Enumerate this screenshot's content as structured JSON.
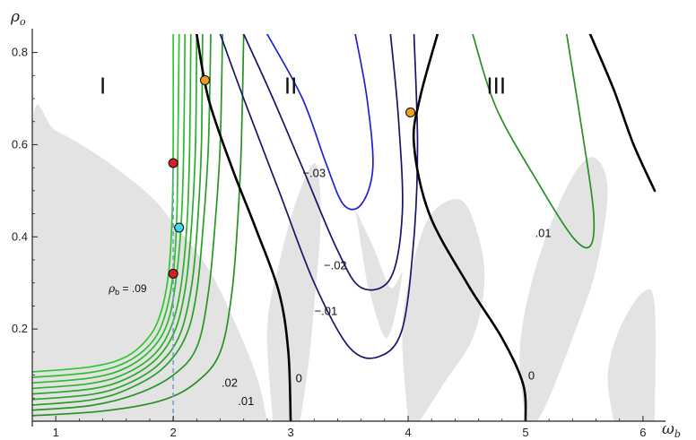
{
  "chart_data": {
    "type": "line",
    "title": "",
    "xlabel": "ω",
    "xlabel_sub": "b",
    "ylabel": "ρ",
    "ylabel_sub": "o",
    "xlim": [
      0.8,
      6.1
    ],
    "ylim": [
      0.0,
      0.84
    ],
    "xticks": [
      "1",
      "2",
      "3",
      "4",
      "5",
      "6"
    ],
    "yticks": [
      "0.2",
      "0.4",
      "0.6",
      "0.8"
    ],
    "grid": false,
    "region_labels": [
      {
        "text": "I",
        "x": 1.4,
        "y": 0.73
      },
      {
        "text": "II",
        "x": 3.0,
        "y": 0.73
      },
      {
        "text": "III",
        "x": 4.75,
        "y": 0.73
      }
    ],
    "shaded_color": "#e3e3e3",
    "colors": {
      "green_light": "#2ec82e",
      "green_dark": "#268f26",
      "blue": "#2020d0",
      "navy": "#15156b",
      "black": "#000000",
      "red_point": "#d42020",
      "cyan_point": "#40d8f0",
      "orange_point": "#f0a020",
      "dashed": "#7a9cc8"
    },
    "contour_labels": [
      {
        "text": ".02",
        "x": 2.48,
        "y": 0.075
      },
      {
        "text": ".01",
        "x": 2.62,
        "y": 0.035
      },
      {
        "text": "0",
        "x": 3.07,
        "y": 0.085
      },
      {
        "text": "0",
        "x": 5.05,
        "y": 0.09
      },
      {
        "text": "−.03",
        "x": 3.2,
        "y": 0.53
      },
      {
        "text": "−.02",
        "x": 3.38,
        "y": 0.33
      },
      {
        "text": "−.01",
        "x": 3.3,
        "y": 0.23
      },
      {
        "text": ".01",
        "x": 5.15,
        "y": 0.4
      }
    ],
    "annotation": {
      "symbol": "ρ",
      "sub": "b",
      "text": " = .09",
      "x": 1.45,
      "y": 0.28
    },
    "points": [
      {
        "type": "red",
        "x": 2.0,
        "y": 0.56
      },
      {
        "type": "red",
        "x": 2.0,
        "y": 0.32
      },
      {
        "type": "cyan",
        "x": 2.05,
        "y": 0.42
      },
      {
        "type": "orange",
        "x": 2.27,
        "y": 0.74
      },
      {
        "type": "orange",
        "x": 4.02,
        "y": 0.67
      }
    ],
    "dashed_line": {
      "x": 2.0,
      "y": [
        0.0,
        0.56
      ]
    },
    "series": [
      {
        "family": "green",
        "value": 0.09,
        "data": [
          [
            0.8,
            0.107
          ],
          [
            1.3,
            0.118
          ],
          [
            1.6,
            0.14
          ],
          [
            1.8,
            0.185
          ],
          [
            1.9,
            0.24
          ],
          [
            1.96,
            0.32
          ],
          [
            1.99,
            0.44
          ],
          [
            2.0,
            0.6
          ],
          [
            2.0,
            0.84
          ]
        ]
      },
      {
        "family": "green",
        "value": 0.08,
        "data": [
          [
            0.8,
            0.095
          ],
          [
            1.3,
            0.106
          ],
          [
            1.6,
            0.128
          ],
          [
            1.82,
            0.172
          ],
          [
            1.93,
            0.23
          ],
          [
            2.0,
            0.32
          ],
          [
            2.03,
            0.44
          ],
          [
            2.04,
            0.6
          ],
          [
            2.05,
            0.84
          ]
        ]
      },
      {
        "family": "green",
        "value": 0.07,
        "data": [
          [
            0.8,
            0.083
          ],
          [
            1.3,
            0.094
          ],
          [
            1.6,
            0.116
          ],
          [
            1.83,
            0.16
          ],
          [
            1.96,
            0.22
          ],
          [
            2.03,
            0.32
          ],
          [
            2.07,
            0.44
          ],
          [
            2.09,
            0.6
          ],
          [
            2.1,
            0.84
          ]
        ]
      },
      {
        "family": "green",
        "value": 0.06,
        "data": [
          [
            0.8,
            0.071
          ],
          [
            1.3,
            0.082
          ],
          [
            1.6,
            0.104
          ],
          [
            1.85,
            0.148
          ],
          [
            1.99,
            0.21
          ],
          [
            2.07,
            0.3
          ],
          [
            2.12,
            0.44
          ],
          [
            2.14,
            0.6
          ],
          [
            2.15,
            0.84
          ]
        ]
      },
      {
        "family": "green",
        "value": 0.05,
        "data": [
          [
            0.8,
            0.059
          ],
          [
            1.3,
            0.07
          ],
          [
            1.6,
            0.092
          ],
          [
            1.86,
            0.136
          ],
          [
            2.02,
            0.2
          ],
          [
            2.11,
            0.3
          ],
          [
            2.16,
            0.44
          ],
          [
            2.19,
            0.6
          ],
          [
            2.2,
            0.84
          ]
        ]
      },
      {
        "family": "green",
        "value": 0.04,
        "data": [
          [
            0.8,
            0.047
          ],
          [
            1.3,
            0.058
          ],
          [
            1.6,
            0.08
          ],
          [
            1.88,
            0.124
          ],
          [
            2.06,
            0.19
          ],
          [
            2.16,
            0.3
          ],
          [
            2.21,
            0.44
          ],
          [
            2.24,
            0.6
          ],
          [
            2.25,
            0.84
          ]
        ]
      },
      {
        "family": "green",
        "value": 0.03,
        "data": [
          [
            0.8,
            0.035
          ],
          [
            1.3,
            0.046
          ],
          [
            1.6,
            0.068
          ],
          [
            1.9,
            0.112
          ],
          [
            2.1,
            0.18
          ],
          [
            2.2,
            0.28
          ],
          [
            2.26,
            0.44
          ],
          [
            2.3,
            0.6
          ],
          [
            2.32,
            0.84
          ]
        ]
      },
      {
        "family": "green",
        "value": 0.02,
        "data": [
          [
            0.8,
            0.024
          ],
          [
            1.3,
            0.034
          ],
          [
            1.7,
            0.06
          ],
          [
            2.0,
            0.1
          ],
          [
            2.2,
            0.16
          ],
          [
            2.3,
            0.28
          ],
          [
            2.36,
            0.44
          ],
          [
            2.4,
            0.6
          ],
          [
            2.42,
            0.84
          ]
        ]
      },
      {
        "family": "green",
        "value": 0.01,
        "data": [
          [
            0.8,
            0.012
          ],
          [
            1.4,
            0.022
          ],
          [
            1.9,
            0.045
          ],
          [
            2.2,
            0.085
          ],
          [
            2.4,
            0.15
          ],
          [
            2.5,
            0.28
          ],
          [
            2.55,
            0.44
          ],
          [
            2.58,
            0.6
          ],
          [
            2.6,
            0.84
          ]
        ]
      },
      {
        "family": "black",
        "value": 0,
        "data": [
          [
            2.2,
            0.84
          ],
          [
            2.3,
            0.7
          ],
          [
            2.5,
            0.55
          ],
          [
            2.7,
            0.42
          ],
          [
            2.9,
            0.28
          ],
          [
            2.98,
            0.15
          ],
          [
            3.0,
            0.0
          ]
        ]
      },
      {
        "family": "blue",
        "value": -0.03,
        "data": [
          [
            2.8,
            0.84
          ],
          [
            3.1,
            0.7
          ],
          [
            3.3,
            0.56
          ],
          [
            3.45,
            0.47
          ],
          [
            3.6,
            0.47
          ],
          [
            3.7,
            0.55
          ],
          [
            3.65,
            0.7
          ],
          [
            3.55,
            0.84
          ]
        ]
      },
      {
        "family": "navy",
        "value": -0.02,
        "data": [
          [
            2.6,
            0.84
          ],
          [
            2.85,
            0.7
          ],
          [
            3.1,
            0.55
          ],
          [
            3.4,
            0.37
          ],
          [
            3.6,
            0.29
          ],
          [
            3.85,
            0.31
          ],
          [
            3.95,
            0.45
          ],
          [
            3.92,
            0.65
          ],
          [
            3.85,
            0.84
          ]
        ]
      },
      {
        "family": "navy",
        "value": -0.01,
        "data": [
          [
            2.4,
            0.84
          ],
          [
            2.6,
            0.7
          ],
          [
            2.9,
            0.5
          ],
          [
            3.2,
            0.3
          ],
          [
            3.5,
            0.16
          ],
          [
            3.75,
            0.14
          ],
          [
            3.95,
            0.2
          ],
          [
            4.05,
            0.4
          ],
          [
            4.08,
            0.6
          ],
          [
            4.05,
            0.84
          ]
        ]
      },
      {
        "family": "black",
        "value": 0,
        "data": [
          [
            4.25,
            0.84
          ],
          [
            4.1,
            0.7
          ],
          [
            4.05,
            0.6
          ],
          [
            4.18,
            0.45
          ],
          [
            4.5,
            0.3
          ],
          [
            4.8,
            0.18
          ],
          [
            4.98,
            0.08
          ],
          [
            5.0,
            0.0
          ]
        ]
      },
      {
        "family": "green",
        "value": 0.01,
        "data": [
          [
            4.55,
            0.84
          ],
          [
            4.75,
            0.68
          ],
          [
            5.1,
            0.52
          ],
          [
            5.4,
            0.4
          ],
          [
            5.55,
            0.38
          ],
          [
            5.58,
            0.45
          ],
          [
            5.5,
            0.6
          ],
          [
            5.35,
            0.84
          ]
        ]
      },
      {
        "family": "black",
        "value": 0,
        "data": [
          [
            5.55,
            0.84
          ],
          [
            5.75,
            0.72
          ],
          [
            5.92,
            0.6
          ],
          [
            6.1,
            0.5
          ]
        ]
      }
    ],
    "shaded_regions": [
      [
        [
          0.8,
          0.0
        ],
        [
          0.8,
          0.64
        ],
        [
          1.0,
          0.63
        ],
        [
          1.4,
          0.57
        ],
        [
          1.8,
          0.49
        ],
        [
          2.0,
          0.43
        ],
        [
          2.3,
          0.33
        ],
        [
          2.55,
          0.2
        ],
        [
          2.72,
          0.09
        ],
        [
          2.8,
          0.0
        ]
      ],
      [
        [
          2.85,
          0.0
        ],
        [
          2.8,
          0.2
        ],
        [
          2.9,
          0.34
        ],
        [
          3.05,
          0.48
        ],
        [
          3.2,
          0.56
        ],
        [
          3.25,
          0.5
        ],
        [
          3.25,
          0.4
        ],
        [
          3.2,
          0.25
        ],
        [
          3.15,
          0.12
        ],
        [
          3.08,
          0.0
        ]
      ],
      [
        [
          3.55,
          0.46
        ],
        [
          3.7,
          0.38
        ],
        [
          3.85,
          0.29
        ],
        [
          3.95,
          0.32
        ],
        [
          3.82,
          0.18
        ],
        [
          3.65,
          0.3
        ]
      ],
      [
        [
          4.0,
          0.0
        ],
        [
          3.95,
          0.2
        ],
        [
          4.05,
          0.35
        ],
        [
          4.2,
          0.45
        ],
        [
          4.45,
          0.48
        ],
        [
          4.6,
          0.4
        ],
        [
          4.65,
          0.3
        ],
        [
          4.55,
          0.18
        ],
        [
          4.3,
          0.08
        ],
        [
          4.1,
          0.0
        ]
      ],
      [
        [
          5.0,
          0.0
        ],
        [
          4.95,
          0.15
        ],
        [
          5.05,
          0.3
        ],
        [
          5.25,
          0.45
        ],
        [
          5.45,
          0.55
        ],
        [
          5.6,
          0.57
        ],
        [
          5.7,
          0.5
        ],
        [
          5.6,
          0.33
        ],
        [
          5.4,
          0.18
        ],
        [
          5.2,
          0.05
        ],
        [
          5.1,
          0.0
        ]
      ],
      [
        [
          5.75,
          0.0
        ],
        [
          5.7,
          0.1
        ],
        [
          5.8,
          0.2
        ],
        [
          6.0,
          0.28
        ],
        [
          6.1,
          0.25
        ],
        [
          6.1,
          0.0
        ]
      ]
    ]
  }
}
